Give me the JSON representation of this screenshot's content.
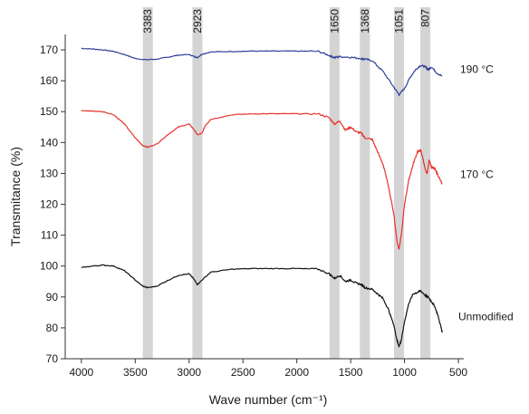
{
  "chart_data": {
    "type": "line",
    "title": "",
    "xlabel": "Wave number (cm⁻¹)",
    "ylabel": "Transmitance (%)",
    "xlim": [
      4150,
      450
    ],
    "ylim": [
      70,
      175
    ],
    "x_reversed": true,
    "x_ticks": [
      4000,
      3500,
      3000,
      2500,
      2000,
      1500,
      1000,
      500
    ],
    "y_ticks": [
      70,
      80,
      90,
      100,
      110,
      120,
      130,
      140,
      150,
      160,
      170
    ],
    "grid": false,
    "highlight_bands": [
      {
        "label": "3383",
        "x": 3383
      },
      {
        "label": "2923",
        "x": 2923
      },
      {
        "label": "1650",
        "x": 1650
      },
      {
        "label": "1368",
        "x": 1368
      },
      {
        "label": "1051",
        "x": 1051
      },
      {
        "label": "807",
        "x": 807
      }
    ],
    "series": [
      {
        "name": "190 °C",
        "color": "#2f3f9a",
        "points": [
          [
            4000,
            170.5
          ],
          [
            3900,
            170.3
          ],
          [
            3800,
            170
          ],
          [
            3700,
            169.5
          ],
          [
            3600,
            168.5
          ],
          [
            3500,
            167.2
          ],
          [
            3400,
            166.8
          ],
          [
            3300,
            167
          ],
          [
            3200,
            167.6
          ],
          [
            3100,
            168.3
          ],
          [
            3000,
            168.5
          ],
          [
            2950,
            167.8
          ],
          [
            2923,
            167.5
          ],
          [
            2880,
            168.6
          ],
          [
            2800,
            169.3
          ],
          [
            2600,
            169.5
          ],
          [
            2400,
            169.6
          ],
          [
            2200,
            169.6
          ],
          [
            2000,
            169.6
          ],
          [
            1800,
            169.5
          ],
          [
            1700,
            168.2
          ],
          [
            1650,
            167.5
          ],
          [
            1600,
            167.8
          ],
          [
            1500,
            167.6
          ],
          [
            1400,
            167.2
          ],
          [
            1368,
            167.0
          ],
          [
            1300,
            166.5
          ],
          [
            1200,
            163
          ],
          [
            1100,
            158
          ],
          [
            1051,
            155.5
          ],
          [
            1000,
            157.5
          ],
          [
            950,
            161
          ],
          [
            900,
            163.5
          ],
          [
            850,
            165
          ],
          [
            807,
            164.5
          ],
          [
            780,
            163.6
          ],
          [
            750,
            164.5
          ],
          [
            700,
            162.5
          ],
          [
            650,
            161.5
          ]
        ]
      },
      {
        "name": "170 °C",
        "color": "#e8322c",
        "points": [
          [
            4000,
            150.3
          ],
          [
            3900,
            150.2
          ],
          [
            3800,
            150
          ],
          [
            3700,
            149
          ],
          [
            3600,
            146
          ],
          [
            3500,
            141.5
          ],
          [
            3430,
            139
          ],
          [
            3383,
            138.5
          ],
          [
            3300,
            139.5
          ],
          [
            3200,
            142.5
          ],
          [
            3100,
            145
          ],
          [
            3000,
            146
          ],
          [
            2950,
            144
          ],
          [
            2923,
            142.5
          ],
          [
            2880,
            143
          ],
          [
            2850,
            145.5
          ],
          [
            2800,
            147.5
          ],
          [
            2600,
            149
          ],
          [
            2400,
            149.3
          ],
          [
            2200,
            149.3
          ],
          [
            2000,
            149.3
          ],
          [
            1800,
            149.3
          ],
          [
            1700,
            148
          ],
          [
            1650,
            146
          ],
          [
            1600,
            147
          ],
          [
            1550,
            144
          ],
          [
            1500,
            145
          ],
          [
            1450,
            143.5
          ],
          [
            1400,
            143
          ],
          [
            1368,
            141.5
          ],
          [
            1300,
            141
          ],
          [
            1250,
            137
          ],
          [
            1200,
            133
          ],
          [
            1150,
            126
          ],
          [
            1100,
            117
          ],
          [
            1070,
            108
          ],
          [
            1051,
            105.5
          ],
          [
            1030,
            110
          ],
          [
            1000,
            120
          ],
          [
            960,
            128
          ],
          [
            920,
            133
          ],
          [
            880,
            137
          ],
          [
            850,
            137.5
          ],
          [
            830,
            135
          ],
          [
            807,
            131
          ],
          [
            790,
            130
          ],
          [
            770,
            134.5
          ],
          [
            750,
            132
          ],
          [
            720,
            131.5
          ],
          [
            690,
            129.5
          ],
          [
            650,
            126.5
          ]
        ]
      },
      {
        "name": "Unmodified",
        "color": "#111111",
        "points": [
          [
            4000,
            99.5
          ],
          [
            3900,
            100
          ],
          [
            3800,
            100.3
          ],
          [
            3700,
            100
          ],
          [
            3600,
            98.5
          ],
          [
            3500,
            95.5
          ],
          [
            3430,
            93.5
          ],
          [
            3383,
            93
          ],
          [
            3300,
            93.5
          ],
          [
            3200,
            95.3
          ],
          [
            3100,
            97
          ],
          [
            3000,
            97.5
          ],
          [
            2960,
            96
          ],
          [
            2923,
            94
          ],
          [
            2880,
            95.5
          ],
          [
            2800,
            98
          ],
          [
            2600,
            99
          ],
          [
            2400,
            99.2
          ],
          [
            2200,
            99.2
          ],
          [
            2000,
            99.2
          ],
          [
            1800,
            99
          ],
          [
            1700,
            97.5
          ],
          [
            1650,
            96
          ],
          [
            1600,
            97
          ],
          [
            1550,
            95
          ],
          [
            1500,
            95.5
          ],
          [
            1450,
            94.5
          ],
          [
            1400,
            94
          ],
          [
            1368,
            93
          ],
          [
            1300,
            92.5
          ],
          [
            1250,
            91
          ],
          [
            1200,
            89.5
          ],
          [
            1150,
            86
          ],
          [
            1100,
            81
          ],
          [
            1070,
            76
          ],
          [
            1051,
            74
          ],
          [
            1030,
            76
          ],
          [
            1000,
            82
          ],
          [
            960,
            88
          ],
          [
            920,
            91
          ],
          [
            880,
            91.5
          ],
          [
            850,
            92
          ],
          [
            807,
            90.5
          ],
          [
            780,
            90
          ],
          [
            750,
            88.5
          ],
          [
            720,
            87
          ],
          [
            690,
            84
          ],
          [
            660,
            80
          ],
          [
            650,
            78.5
          ]
        ]
      }
    ],
    "series_labels": {
      "190": "190 °C",
      "170": "170 °C",
      "unmodified": "Unmodified"
    }
  }
}
